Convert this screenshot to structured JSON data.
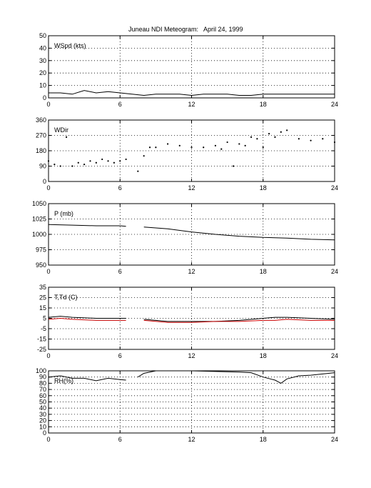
{
  "figure": {
    "title": "Juneau NDI Meteogram:",
    "date": "April 24, 1999"
  },
  "chart_data": [
    {
      "type": "line",
      "panel_label": "WSpd (kts)",
      "xlim": [
        0,
        24
      ],
      "xticks": [
        0,
        6,
        12,
        18,
        24
      ],
      "ylim": [
        0,
        50
      ],
      "yticks": [
        0,
        10,
        20,
        30,
        40,
        50
      ],
      "grid": true,
      "series": [
        {
          "name": "",
          "color": "#000000",
          "x": [
            0,
            1,
            2,
            3,
            4,
            5,
            6,
            7,
            8,
            9,
            10,
            11,
            12,
            13,
            14,
            15,
            16,
            17,
            18,
            19,
            20,
            21,
            22,
            23,
            24
          ],
          "y": [
            4,
            4,
            3,
            6,
            4,
            5,
            4,
            3,
            2,
            3,
            3,
            3,
            2,
            3,
            3,
            3,
            2,
            2,
            3,
            3,
            3,
            3,
            3,
            3,
            3
          ]
        }
      ]
    },
    {
      "type": "scatter",
      "panel_label": "WDir",
      "xlim": [
        0,
        24
      ],
      "xticks": [
        0,
        6,
        12,
        18,
        24
      ],
      "ylim": [
        0,
        360
      ],
      "yticks": [
        0,
        90,
        180,
        270,
        360
      ],
      "grid": true,
      "series": [
        {
          "name": "",
          "color": "#000000",
          "x": [
            0,
            0.5,
            1,
            1.5,
            2,
            2.5,
            3,
            3.5,
            4,
            4.5,
            5,
            5.5,
            6,
            6.5,
            7.5,
            8,
            8.5,
            9,
            10,
            11,
            12,
            13,
            14,
            14.5,
            15,
            15.5,
            16,
            16.5,
            17,
            17.5,
            18,
            18.5,
            19,
            19.5,
            20,
            21,
            22,
            23,
            24
          ],
          "y": [
            120,
            100,
            90,
            260,
            90,
            110,
            100,
            120,
            110,
            130,
            120,
            110,
            120,
            130,
            60,
            150,
            200,
            200,
            220,
            210,
            200,
            200,
            210,
            190,
            230,
            90,
            220,
            210,
            260,
            250,
            200,
            280,
            260,
            290,
            300,
            250,
            240,
            250,
            230
          ]
        }
      ]
    },
    {
      "type": "line",
      "panel_label": "P (mb)",
      "xlim": [
        0,
        24
      ],
      "xticks": [
        0,
        6,
        12,
        18,
        24
      ],
      "ylim": [
        950,
        1050
      ],
      "yticks": [
        950,
        975,
        1000,
        1025,
        1050
      ],
      "grid": true,
      "series": [
        {
          "name": "",
          "color": "#000000",
          "x": [
            0,
            2,
            4,
            6,
            6.5,
            7,
            8,
            10,
            12,
            14,
            16,
            18,
            20,
            22,
            24
          ],
          "y": [
            1016,
            1015,
            1014,
            1014,
            1013,
            null,
            1012,
            1009,
            1004,
            1000,
            997,
            995,
            994,
            992,
            991
          ]
        }
      ]
    },
    {
      "type": "line",
      "panel_label": "T,Td (C)",
      "xlim": [
        0,
        24
      ],
      "xticks": [
        0,
        6,
        12,
        18,
        24
      ],
      "ylim": [
        -25,
        35
      ],
      "yticks": [
        -25,
        -15,
        -5,
        5,
        15,
        25,
        35
      ],
      "grid": true,
      "series": [
        {
          "name": "",
          "color": "#000000",
          "x": [
            0,
            1,
            2,
            4,
            6,
            6.5,
            7,
            8,
            10,
            12,
            14,
            16,
            18,
            19,
            20,
            22,
            24
          ],
          "y": [
            6,
            7,
            6,
            5,
            5,
            5,
            null,
            4,
            2,
            2,
            2,
            3,
            5,
            6,
            6,
            5,
            4
          ]
        },
        {
          "name": "",
          "color": "#cc0000",
          "x": [
            0,
            1,
            2,
            4,
            6,
            6.5,
            7,
            8,
            10,
            12,
            14,
            16,
            18,
            19,
            20,
            22,
            24
          ],
          "y": [
            4,
            5,
            4,
            3,
            3,
            3,
            null,
            3,
            1,
            1,
            2,
            2,
            3,
            3,
            4,
            3,
            3
          ]
        }
      ]
    },
    {
      "type": "line",
      "panel_label": "RH(%)",
      "xlim": [
        0,
        24
      ],
      "xticks": [
        0,
        6,
        12,
        18,
        24
      ],
      "ylim": [
        0,
        100
      ],
      "yticks": [
        0,
        10,
        20,
        30,
        40,
        50,
        60,
        70,
        80,
        90,
        100
      ],
      "grid": true,
      "series": [
        {
          "name": "",
          "color": "#000000",
          "x": [
            0,
            1,
            2,
            3,
            4,
            5,
            6,
            6.5,
            7,
            7.5,
            8,
            9,
            10,
            12,
            14,
            16,
            17,
            18,
            19,
            19.5,
            20,
            21,
            22,
            23,
            24
          ],
          "y": [
            90,
            92,
            88,
            88,
            84,
            88,
            86,
            85,
            null,
            90,
            96,
            100,
            100,
            100,
            99,
            98,
            97,
            90,
            85,
            80,
            87,
            92,
            93,
            95,
            97
          ]
        }
      ]
    }
  ]
}
